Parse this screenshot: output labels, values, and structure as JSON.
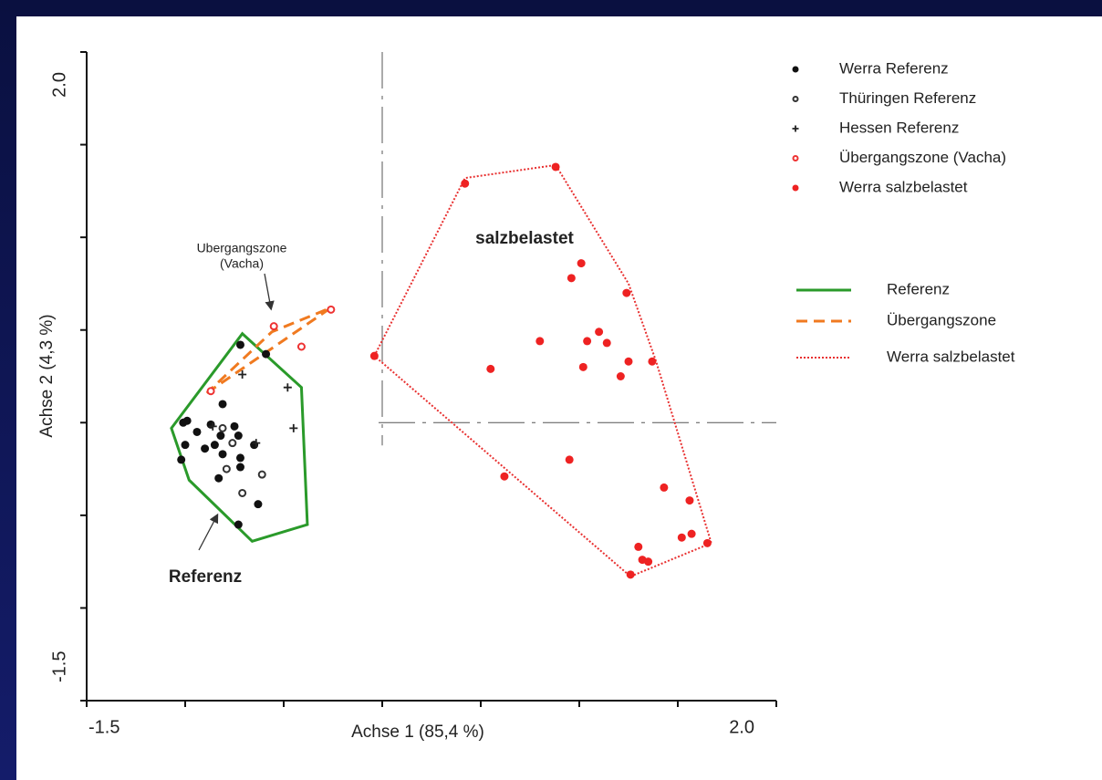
{
  "chart_data": {
    "type": "scatter",
    "xlabel": "Achse 1 (85,4 %)",
    "ylabel": "Achse 2 (4,3 %)",
    "xlim": [
      -1.5,
      2
    ],
    "ylim": [
      -1.5,
      2
    ],
    "xticks": [
      -1.5,
      {
        "value": 2,
        "label": "2.0"
      }
    ],
    "yticks": [
      -1.5,
      {
        "value": 2,
        "label": "2.0"
      }
    ],
    "xticks_minor": [
      -1,
      -0.5,
      0,
      0.5,
      1,
      1.5
    ],
    "yticks_minor": [
      -1,
      -0.5,
      0,
      0.5,
      1,
      1.5
    ],
    "zero_lines": true,
    "series": [
      {
        "name": "Werra Referenz",
        "color": "#111111",
        "marker": "filled",
        "x": [
          -0.72,
          -0.59,
          -0.81,
          -0.99,
          -1.01,
          -0.94,
          -0.87,
          -0.75,
          -0.82,
          -0.73,
          -1.0,
          -0.85,
          -0.65,
          -0.81,
          -0.72,
          -0.9,
          -1.02,
          -0.72,
          -0.83,
          -0.63,
          -0.73
        ],
        "y": [
          0.42,
          0.37,
          0.1,
          0.01,
          0,
          -0.05,
          -0.01,
          -0.02,
          -0.07,
          -0.07,
          -0.12,
          -0.12,
          -0.12,
          -0.17,
          -0.19,
          -0.14,
          -0.2,
          -0.24,
          -0.3,
          -0.44,
          -0.55
        ]
      },
      {
        "name": "Thüringen Referenz",
        "color": "#333333",
        "marker": "open",
        "x": [
          -0.76,
          -0.79,
          -0.61,
          -0.71,
          -0.81
        ],
        "y": [
          -0.11,
          -0.25,
          -0.28,
          -0.38,
          -0.03
        ]
      },
      {
        "name": "Hessen Referenz",
        "color": "#222222",
        "marker": "plus",
        "x": [
          -0.71,
          -0.48,
          -0.45,
          -0.86,
          -0.64
        ],
        "y": [
          0.26,
          0.19,
          -0.03,
          -0.02,
          -0.11
        ]
      },
      {
        "name": "Übergangszone (Vacha)",
        "color": "#ee3333",
        "marker": "open",
        "x": [
          -0.26,
          -0.41,
          -0.55,
          -0.87
        ],
        "y": [
          0.61,
          0.41,
          0.52,
          0.17
        ]
      },
      {
        "name": "Werra salzbelastet",
        "color": "#ee2222",
        "marker": "filled",
        "x": [
          0.42,
          0.88,
          -0.04,
          1.01,
          0.96,
          1.24,
          0.8,
          1.1,
          1.04,
          1.14,
          0.55,
          1.02,
          1.25,
          1.37,
          1.21,
          0.95,
          0.62,
          1.43,
          1.56,
          1.52,
          1.57,
          1.65,
          1.3,
          1.32,
          1.35,
          1.26
        ],
        "y": [
          1.29,
          1.38,
          0.36,
          0.86,
          0.78,
          0.7,
          0.44,
          0.49,
          0.44,
          0.43,
          0.29,
          0.3,
          0.33,
          0.33,
          0.25,
          -0.2,
          -0.29,
          -0.35,
          -0.42,
          -0.62,
          -0.6,
          -0.65,
          -0.67,
          -0.74,
          -0.75,
          -0.82
        ]
      }
    ],
    "hulls": [
      {
        "name": "Referenz",
        "color": "#2a9a2a",
        "style": "solid",
        "x": [
          -1.07,
          -0.98,
          -0.66,
          -0.38,
          -0.41,
          -0.71
        ],
        "y": [
          -0.03,
          -0.31,
          -0.64,
          -0.55,
          0.19,
          0.48
        ]
      },
      {
        "name": "Übergangszone",
        "color": "#f07a20",
        "style": "dashed",
        "x": [
          -0.89,
          -0.26,
          -0.56
        ],
        "y": [
          0.16,
          0.62,
          0.49
        ]
      },
      {
        "name": "Werra salzbelastet",
        "color": "#e83030",
        "style": "dotted",
        "x": [
          -0.04,
          0.42,
          0.88,
          1.25,
          1.39,
          1.67,
          1.26
        ],
        "y": [
          0.36,
          1.32,
          1.39,
          0.75,
          0.33,
          -0.65,
          -0.83
        ]
      }
    ],
    "annotations": [
      {
        "lines": [
          "Ubergangszone",
          "(Vacha)"
        ],
        "bold": false
      },
      {
        "lines": [
          "Referenz"
        ],
        "bold": true
      },
      {
        "lines": [
          "salzbelastet"
        ],
        "bold": true
      }
    ]
  }
}
